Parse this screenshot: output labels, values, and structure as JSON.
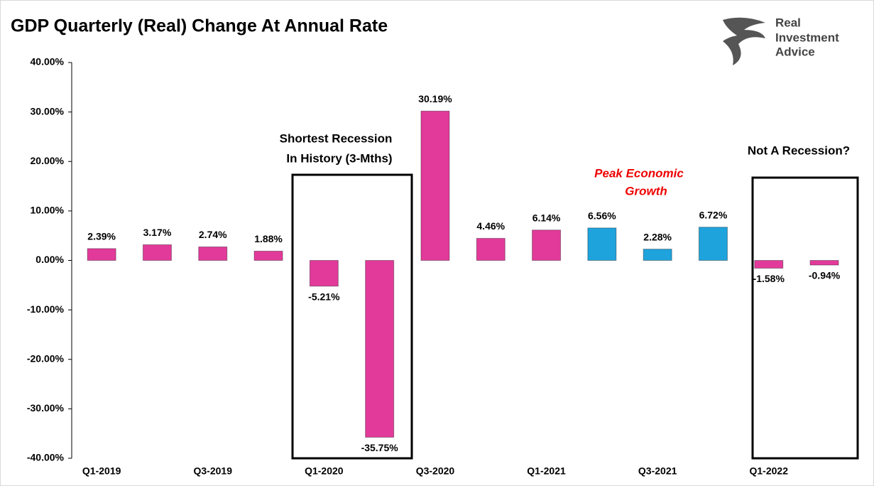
{
  "chart_data": {
    "type": "bar",
    "title": "GDP Quarterly (Real) Change At Annual Rate",
    "categories": [
      "Q1-2019",
      null,
      "Q3-2019",
      null,
      "Q1-2020",
      null,
      "Q3-2020",
      null,
      "Q1-2021",
      null,
      "Q3-2021",
      null,
      "Q1-2022",
      null
    ],
    "values": [
      2.39,
      3.17,
      2.74,
      1.88,
      -5.21,
      -35.75,
      30.19,
      4.46,
      6.14,
      6.56,
      2.28,
      6.72,
      -1.58,
      -0.94
    ],
    "value_labels": [
      "2.39%",
      "3.17%",
      "2.74%",
      "1.88%",
      "-5.21%",
      "-35.75%",
      "30.19%",
      "4.46%",
      "6.14%",
      "6.56%",
      "2.28%",
      "6.72%",
      "-1.58%",
      "-0.94%"
    ],
    "colors": [
      "#e23a9a",
      "#e23a9a",
      "#e23a9a",
      "#e23a9a",
      "#e23a9a",
      "#e23a9a",
      "#e23a9a",
      "#e23a9a",
      "#e23a9a",
      "#1fa3dc",
      "#1fa3dc",
      "#1fa3dc",
      "#e23a9a",
      "#e23a9a"
    ],
    "ylim": [
      -40,
      40
    ],
    "yticks": [
      {
        "value": -40,
        "label": "-40.00%"
      },
      {
        "value": -30,
        "label": "-30.00%"
      },
      {
        "value": -20,
        "label": "-20.00%"
      },
      {
        "value": -10,
        "label": "-10.00%"
      },
      {
        "value": 0,
        "label": "0.00%"
      },
      {
        "value": 10,
        "label": "10.00%"
      },
      {
        "value": 20,
        "label": "20.00%"
      },
      {
        "value": 30,
        "label": "30.00%"
      },
      {
        "value": 40,
        "label": "40.00%"
      }
    ],
    "grid": false,
    "annotations": {
      "recession": [
        "Shortest Recession",
        "In History (3-Mths)"
      ],
      "peak": [
        "Peak Economic",
        "Growth"
      ],
      "not_recession": "Not A Recession?"
    },
    "logo": [
      "Real",
      "Investment",
      "Advice"
    ]
  }
}
